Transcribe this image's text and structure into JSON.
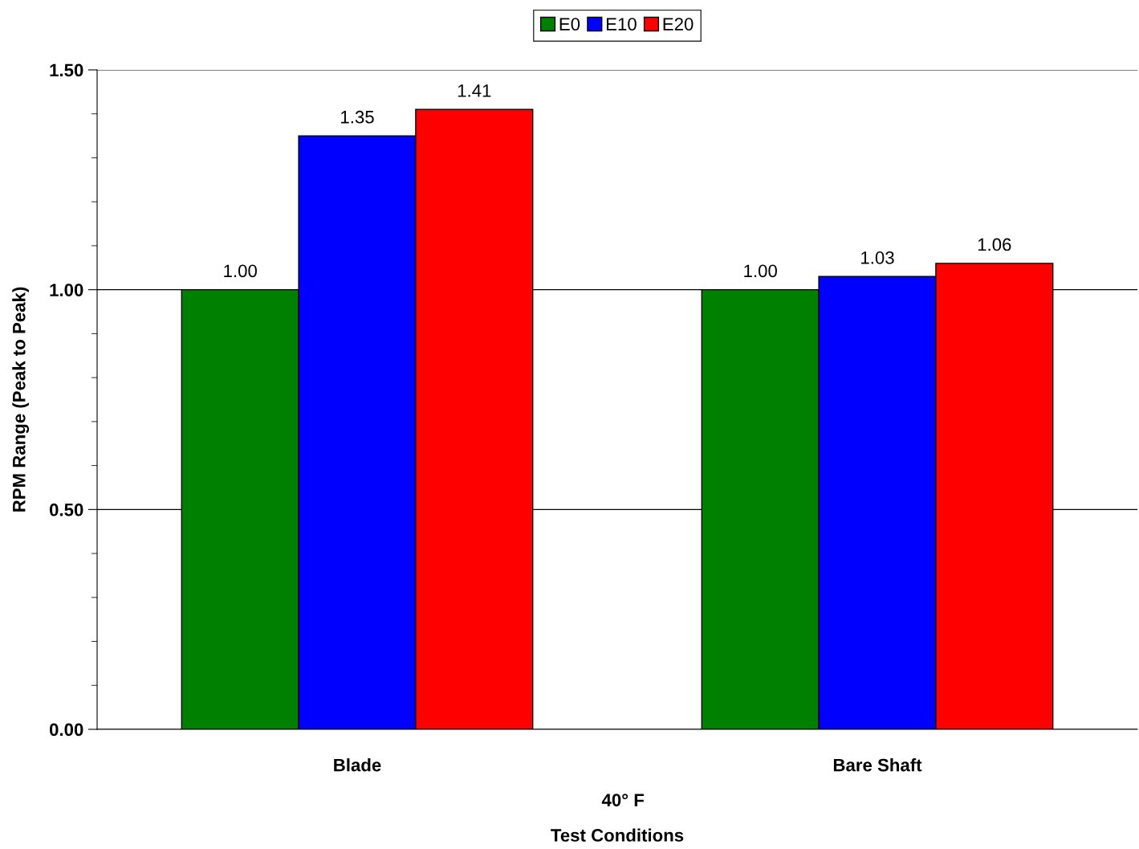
{
  "chart_data": {
    "type": "bar",
    "categories": [
      "Blade",
      "Bare Shaft"
    ],
    "series": [
      {
        "name": "E0",
        "color": "#008000",
        "values": [
          1.0,
          1.0
        ],
        "value_labels": [
          "1.00",
          "1.00"
        ]
      },
      {
        "name": "E10",
        "color": "#0000ff",
        "values": [
          1.35,
          1.03
        ],
        "value_labels": [
          "1.35",
          "1.03"
        ]
      },
      {
        "name": "E20",
        "color": "#ff0000",
        "values": [
          1.41,
          1.06
        ],
        "value_labels": [
          "1.41",
          "1.06"
        ]
      }
    ],
    "xlabel": "Test Conditions",
    "ylabel": "RPM Range (Peak to Peak)",
    "annotations": [
      "40° F"
    ],
    "ylim": [
      0,
      1.5
    ],
    "yticks": [
      {
        "value": 0,
        "label": "0.00"
      },
      {
        "value": 0.5,
        "label": "0.50"
      },
      {
        "value": 1.0,
        "label": "1.00"
      },
      {
        "value": 1.5,
        "label": "1.50"
      }
    ],
    "grid": "y",
    "legend": "top"
  }
}
